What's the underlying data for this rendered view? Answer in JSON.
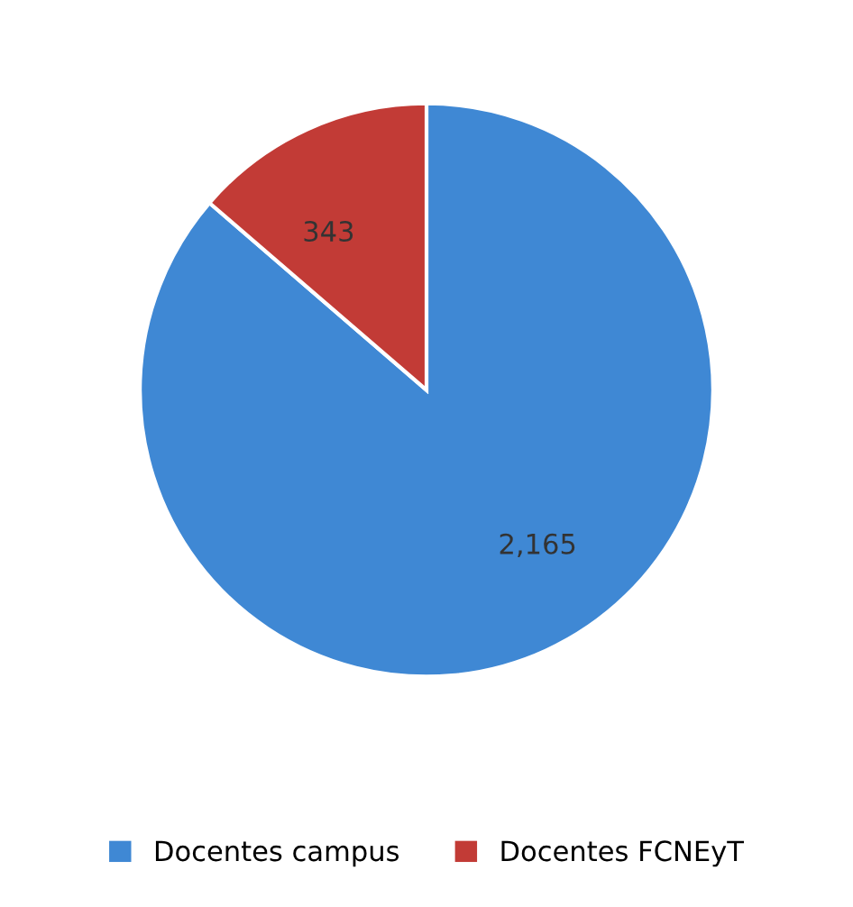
{
  "chart_data": {
    "type": "pie",
    "categories": [
      "Docentes campus",
      "Docentes FCNEyT"
    ],
    "values": [
      2165,
      343
    ],
    "value_labels": [
      "2,165",
      "343"
    ],
    "colors": [
      "#3f88d4",
      "#c23b36"
    ],
    "legend": "bottom"
  }
}
